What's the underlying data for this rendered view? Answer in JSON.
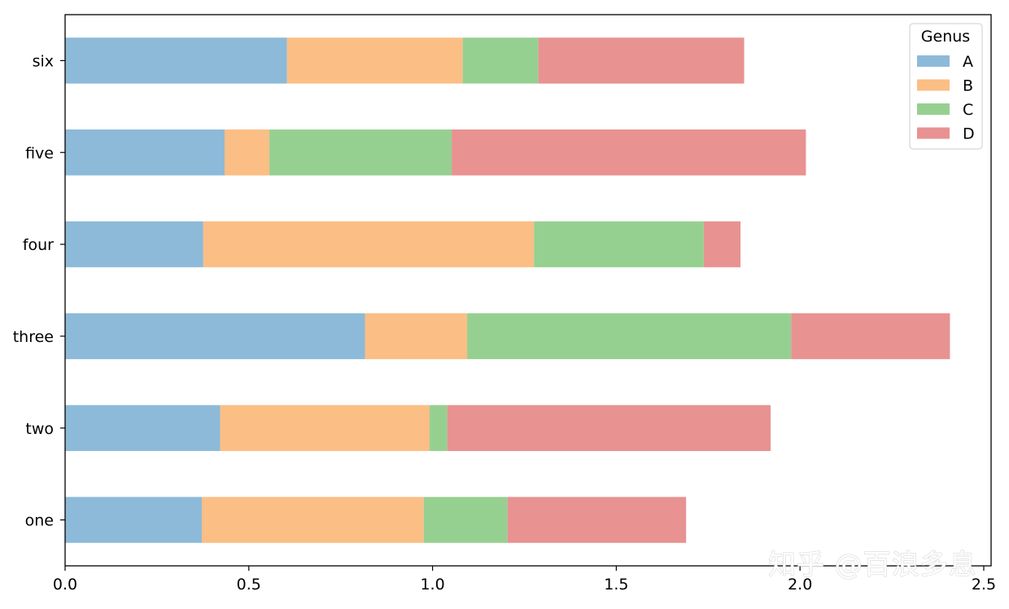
{
  "chart_data": {
    "type": "bar",
    "orientation": "horizontal",
    "stacked": true,
    "categories": [
      "one",
      "two",
      "three",
      "four",
      "five",
      "six"
    ],
    "series": [
      {
        "name": "A",
        "color": "#8dbad8",
        "values": [
          0.372,
          0.422,
          0.816,
          0.376,
          0.434,
          0.604
        ]
      },
      {
        "name": "B",
        "color": "#fbbe85",
        "values": [
          0.604,
          0.57,
          0.278,
          0.9,
          0.122,
          0.478
        ]
      },
      {
        "name": "C",
        "color": "#96d091",
        "values": [
          0.228,
          0.048,
          0.882,
          0.462,
          0.496,
          0.206
        ]
      },
      {
        "name": "D",
        "color": "#e89292",
        "values": [
          0.486,
          0.88,
          0.432,
          0.1,
          0.964,
          0.56
        ]
      }
    ],
    "xlim": [
      0,
      2.52
    ],
    "xticks": [
      0.0,
      0.5,
      1.0,
      1.5,
      2.0,
      2.5
    ],
    "xtick_labels": [
      "0.0",
      "0.5",
      "1.0",
      "1.5",
      "2.0",
      "2.5"
    ],
    "title": "",
    "xlabel": "",
    "ylabel": "",
    "grid": false,
    "legend": {
      "title": "Genus",
      "placement": "top-right"
    }
  },
  "watermark": "知乎 @百浪多息"
}
